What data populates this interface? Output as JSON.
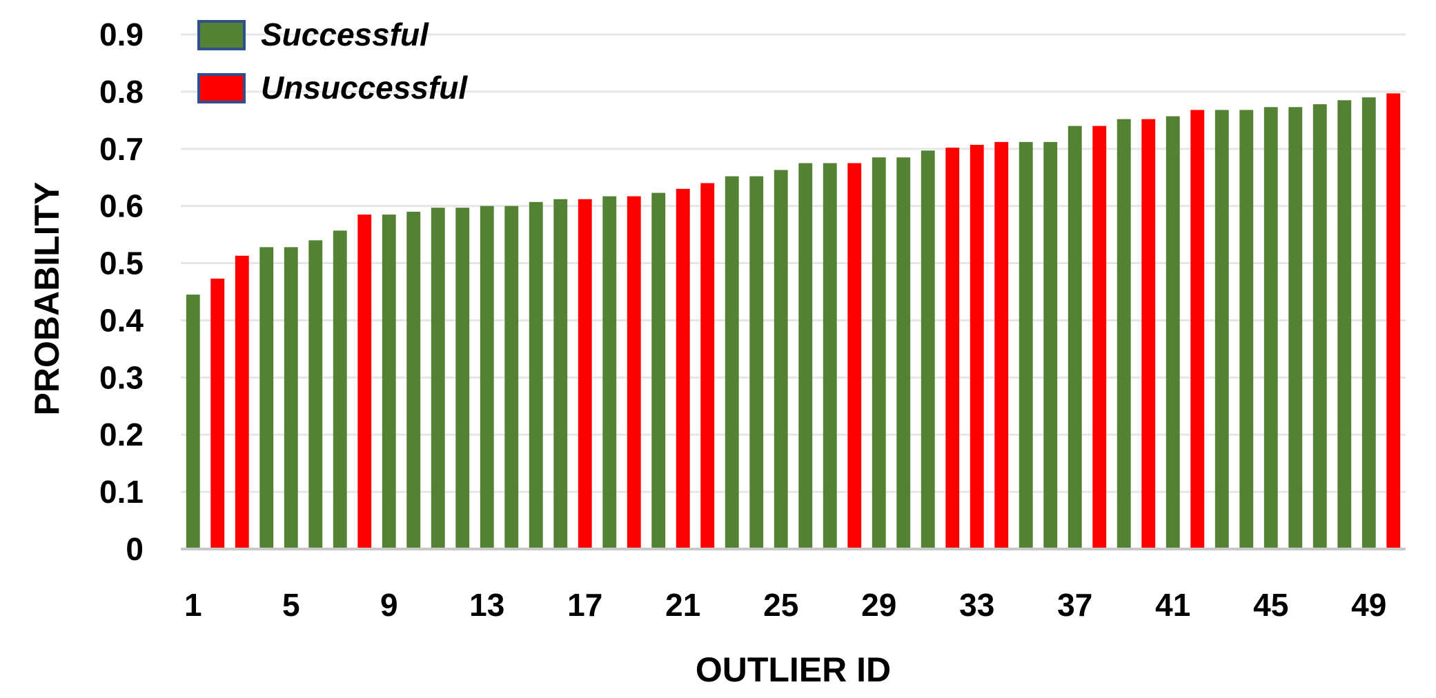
{
  "chart_data": {
    "type": "bar",
    "xlabel": "OUTLIER ID",
    "ylabel": "PROBABILITY",
    "ylim": [
      0,
      0.9
    ],
    "yticks": [
      "0",
      "0.1",
      "0.2",
      "0.3",
      "0.4",
      "0.5",
      "0.6",
      "0.7",
      "0.8",
      "0.9"
    ],
    "xtick_labels": [
      "1",
      "5",
      "9",
      "13",
      "17",
      "21",
      "25",
      "29",
      "33",
      "37",
      "41",
      "45",
      "49"
    ],
    "grid": true,
    "legend_placement": "top-left",
    "legend": [
      {
        "label": "Successful",
        "status": "successful",
        "color": "#548235"
      },
      {
        "label": "Unsuccessful",
        "status": "unsuccessful",
        "color": "#ff0000"
      }
    ],
    "categories": [
      1,
      2,
      3,
      4,
      5,
      6,
      7,
      8,
      9,
      10,
      11,
      12,
      13,
      14,
      15,
      16,
      17,
      18,
      19,
      20,
      21,
      22,
      23,
      24,
      25,
      26,
      27,
      28,
      29,
      30,
      31,
      32,
      33,
      34,
      35,
      36,
      37,
      38,
      39,
      40,
      41,
      42,
      43,
      44,
      45,
      46,
      47,
      48,
      49,
      50
    ],
    "values": [
      0.445,
      0.473,
      0.513,
      0.528,
      0.528,
      0.54,
      0.557,
      0.585,
      0.585,
      0.59,
      0.597,
      0.597,
      0.6,
      0.6,
      0.607,
      0.612,
      0.612,
      0.617,
      0.617,
      0.623,
      0.63,
      0.64,
      0.652,
      0.652,
      0.663,
      0.675,
      0.675,
      0.675,
      0.685,
      0.685,
      0.697,
      0.702,
      0.707,
      0.712,
      0.712,
      0.712,
      0.74,
      0.74,
      0.752,
      0.752,
      0.757,
      0.768,
      0.768,
      0.768,
      0.773,
      0.773,
      0.778,
      0.785,
      0.79,
      0.797
    ],
    "status": [
      "successful",
      "unsuccessful",
      "unsuccessful",
      "successful",
      "successful",
      "successful",
      "successful",
      "unsuccessful",
      "successful",
      "successful",
      "successful",
      "successful",
      "successful",
      "successful",
      "successful",
      "successful",
      "unsuccessful",
      "successful",
      "unsuccessful",
      "successful",
      "unsuccessful",
      "unsuccessful",
      "successful",
      "successful",
      "successful",
      "successful",
      "successful",
      "unsuccessful",
      "successful",
      "successful",
      "successful",
      "unsuccessful",
      "unsuccessful",
      "unsuccessful",
      "successful",
      "successful",
      "successful",
      "unsuccessful",
      "successful",
      "unsuccessful",
      "successful",
      "unsuccessful",
      "successful",
      "successful",
      "successful",
      "successful",
      "successful",
      "successful",
      "successful",
      "unsuccessful"
    ]
  }
}
